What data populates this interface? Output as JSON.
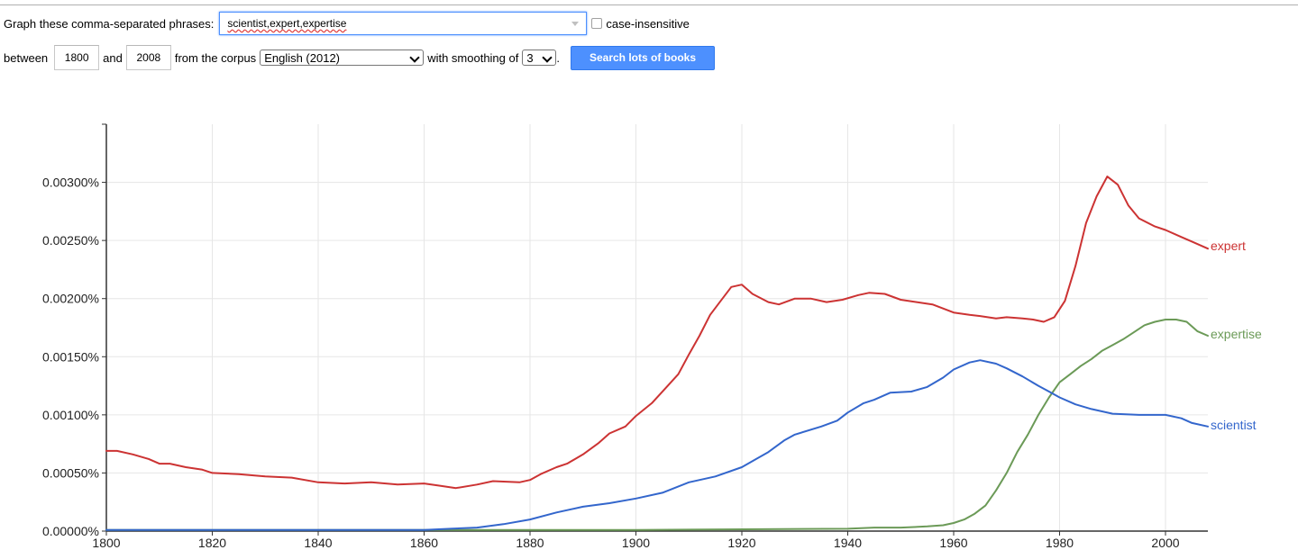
{
  "form": {
    "phrases_label": "Graph these comma-separated phrases:",
    "phrases_value": "scientist,expert,expertise",
    "case_label": "case-insensitive",
    "between_label": "between",
    "start_year": "1800",
    "and_label": "and",
    "end_year": "2008",
    "corpus_label": "from the corpus",
    "corpus_value": "English (2012)",
    "smoothing_label": "with smoothing of",
    "smoothing_value": "3",
    "period": ".",
    "search_label": "Search lots of books"
  },
  "chart_data": {
    "type": "line",
    "title": "",
    "xlabel": "",
    "ylabel": "",
    "xlim": [
      1800,
      2008
    ],
    "ylim": [
      0,
      0.0035
    ],
    "grid": true,
    "legend": "inline-right",
    "x_ticks": [
      1800,
      1820,
      1840,
      1860,
      1880,
      1900,
      1920,
      1940,
      1960,
      1980,
      2000
    ],
    "y_ticks": [
      0,
      0.0005,
      0.001,
      0.0015,
      0.002,
      0.0025,
      0.003
    ],
    "y_tick_labels": [
      "0.00000%",
      "0.00050%",
      "0.00100%",
      "0.00150%",
      "0.00200%",
      "0.00250%",
      "0.00300%"
    ],
    "series": [
      {
        "name": "expert",
        "color": "#cc3333",
        "points": [
          [
            1800,
            0.00069
          ],
          [
            1802,
            0.00069
          ],
          [
            1805,
            0.00066
          ],
          [
            1808,
            0.00062
          ],
          [
            1810,
            0.00058
          ],
          [
            1812,
            0.00058
          ],
          [
            1815,
            0.00055
          ],
          [
            1818,
            0.00053
          ],
          [
            1820,
            0.0005
          ],
          [
            1825,
            0.00049
          ],
          [
            1830,
            0.00047
          ],
          [
            1835,
            0.00046
          ],
          [
            1840,
            0.00042
          ],
          [
            1845,
            0.00041
          ],
          [
            1850,
            0.00042
          ],
          [
            1855,
            0.0004
          ],
          [
            1860,
            0.00041
          ],
          [
            1863,
            0.00039
          ],
          [
            1866,
            0.00037
          ],
          [
            1870,
            0.0004
          ],
          [
            1873,
            0.00043
          ],
          [
            1878,
            0.00042
          ],
          [
            1880,
            0.00044
          ],
          [
            1882,
            0.00049
          ],
          [
            1885,
            0.00055
          ],
          [
            1887,
            0.00058
          ],
          [
            1890,
            0.00066
          ],
          [
            1893,
            0.00076
          ],
          [
            1895,
            0.00084
          ],
          [
            1898,
            0.0009
          ],
          [
            1900,
            0.00099
          ],
          [
            1903,
            0.0011
          ],
          [
            1906,
            0.00125
          ],
          [
            1908,
            0.00135
          ],
          [
            1910,
            0.00152
          ],
          [
            1912,
            0.00168
          ],
          [
            1914,
            0.00186
          ],
          [
            1916,
            0.00198
          ],
          [
            1918,
            0.0021
          ],
          [
            1920,
            0.00212
          ],
          [
            1922,
            0.00204
          ],
          [
            1925,
            0.00197
          ],
          [
            1927,
            0.00195
          ],
          [
            1930,
            0.002
          ],
          [
            1933,
            0.002
          ],
          [
            1936,
            0.00197
          ],
          [
            1939,
            0.00199
          ],
          [
            1942,
            0.00203
          ],
          [
            1944,
            0.00205
          ],
          [
            1947,
            0.00204
          ],
          [
            1950,
            0.00199
          ],
          [
            1953,
            0.00197
          ],
          [
            1956,
            0.00195
          ],
          [
            1960,
            0.00188
          ],
          [
            1963,
            0.00186
          ],
          [
            1965,
            0.00185
          ],
          [
            1968,
            0.00183
          ],
          [
            1970,
            0.00184
          ],
          [
            1973,
            0.00183
          ],
          [
            1975,
            0.00182
          ],
          [
            1977,
            0.0018
          ],
          [
            1979,
            0.00184
          ],
          [
            1981,
            0.00198
          ],
          [
            1983,
            0.00228
          ],
          [
            1985,
            0.00265
          ],
          [
            1987,
            0.00288
          ],
          [
            1989,
            0.00305
          ],
          [
            1991,
            0.00298
          ],
          [
            1993,
            0.0028
          ],
          [
            1995,
            0.00269
          ],
          [
            1998,
            0.00262
          ],
          [
            2000,
            0.00259
          ],
          [
            2003,
            0.00253
          ],
          [
            2005,
            0.00249
          ],
          [
            2008,
            0.00243
          ]
        ]
      },
      {
        "name": "expertise",
        "color": "#6b9a57",
        "points": [
          [
            1800,
            1e-05
          ],
          [
            1850,
            1e-05
          ],
          [
            1900,
            1e-05
          ],
          [
            1940,
            2e-05
          ],
          [
            1945,
            3e-05
          ],
          [
            1950,
            3e-05
          ],
          [
            1955,
            4e-05
          ],
          [
            1958,
            5e-05
          ],
          [
            1960,
            7e-05
          ],
          [
            1962,
            0.0001
          ],
          [
            1964,
            0.00015
          ],
          [
            1966,
            0.00022
          ],
          [
            1968,
            0.00035
          ],
          [
            1970,
            0.0005
          ],
          [
            1972,
            0.00068
          ],
          [
            1974,
            0.00083
          ],
          [
            1976,
            0.001
          ],
          [
            1978,
            0.00115
          ],
          [
            1980,
            0.00128
          ],
          [
            1982,
            0.00135
          ],
          [
            1984,
            0.00142
          ],
          [
            1986,
            0.00148
          ],
          [
            1988,
            0.00155
          ],
          [
            1990,
            0.0016
          ],
          [
            1992,
            0.00165
          ],
          [
            1994,
            0.00171
          ],
          [
            1996,
            0.00177
          ],
          [
            1998,
            0.0018
          ],
          [
            2000,
            0.00182
          ],
          [
            2002,
            0.00182
          ],
          [
            2004,
            0.0018
          ],
          [
            2006,
            0.00172
          ],
          [
            2008,
            0.00168
          ]
        ]
      },
      {
        "name": "scientist",
        "color": "#3366cc",
        "points": [
          [
            1800,
            1e-05
          ],
          [
            1860,
            1e-05
          ],
          [
            1865,
            2e-05
          ],
          [
            1870,
            3e-05
          ],
          [
            1875,
            6e-05
          ],
          [
            1880,
            0.0001
          ],
          [
            1885,
            0.00016
          ],
          [
            1890,
            0.00021
          ],
          [
            1895,
            0.00024
          ],
          [
            1900,
            0.00028
          ],
          [
            1905,
            0.00033
          ],
          [
            1910,
            0.00042
          ],
          [
            1915,
            0.00047
          ],
          [
            1920,
            0.00055
          ],
          [
            1925,
            0.00068
          ],
          [
            1928,
            0.00078
          ],
          [
            1930,
            0.00083
          ],
          [
            1935,
            0.0009
          ],
          [
            1938,
            0.00095
          ],
          [
            1940,
            0.00102
          ],
          [
            1943,
            0.0011
          ],
          [
            1945,
            0.00113
          ],
          [
            1948,
            0.00119
          ],
          [
            1952,
            0.0012
          ],
          [
            1955,
            0.00124
          ],
          [
            1958,
            0.00132
          ],
          [
            1960,
            0.00139
          ],
          [
            1963,
            0.00145
          ],
          [
            1965,
            0.00147
          ],
          [
            1968,
            0.00144
          ],
          [
            1970,
            0.0014
          ],
          [
            1973,
            0.00133
          ],
          [
            1976,
            0.00125
          ],
          [
            1978,
            0.0012
          ],
          [
            1980,
            0.00115
          ],
          [
            1983,
            0.00109
          ],
          [
            1986,
            0.00105
          ],
          [
            1990,
            0.00101
          ],
          [
            1995,
            0.001
          ],
          [
            2000,
            0.001
          ],
          [
            2003,
            0.00097
          ],
          [
            2005,
            0.00093
          ],
          [
            2008,
            0.0009
          ]
        ]
      }
    ]
  }
}
